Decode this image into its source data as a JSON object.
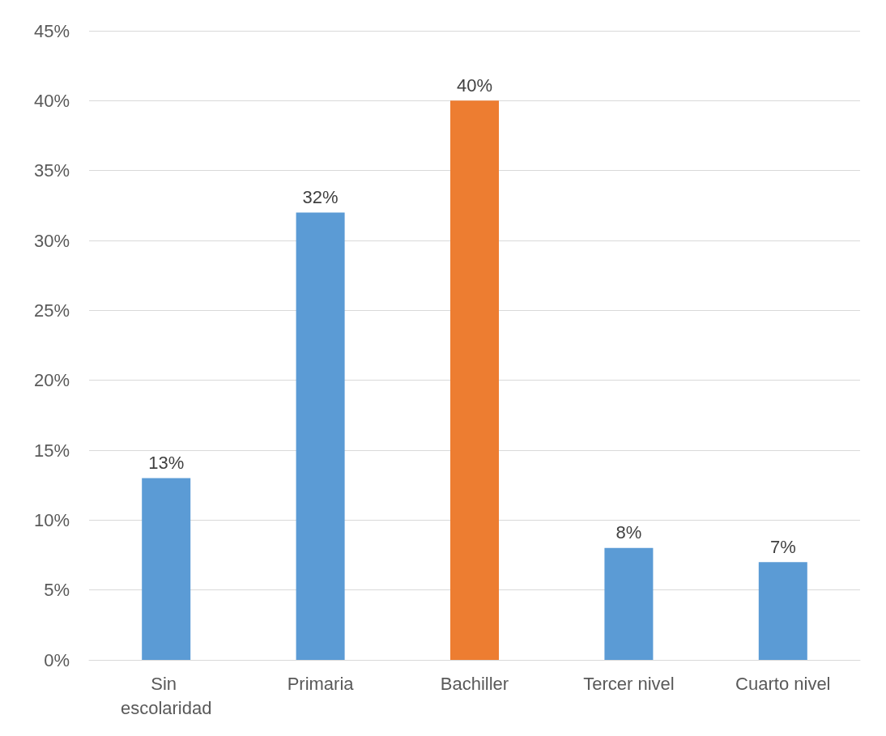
{
  "chart_data": {
    "type": "bar",
    "categories": [
      "Sin escolaridad",
      "Primaria",
      "Bachiller",
      "Tercer nivel",
      "Cuarto nivel"
    ],
    "values": [
      13,
      32,
      40,
      8,
      7
    ],
    "colors": [
      "#5b9bd5",
      "#5b9bd5",
      "#ed7d31",
      "#5b9bd5",
      "#5b9bd5"
    ],
    "value_labels": [
      "13%",
      "32%",
      "40%",
      "8%",
      "7%"
    ],
    "ylim": [
      0,
      45
    ],
    "yticks": [
      {
        "value": 0,
        "label": "0%"
      },
      {
        "value": 5,
        "label": "5%"
      },
      {
        "value": 10,
        "label": "10%"
      },
      {
        "value": 15,
        "label": "15%"
      },
      {
        "value": 20,
        "label": "20%"
      },
      {
        "value": 25,
        "label": "25%"
      },
      {
        "value": 30,
        "label": "30%"
      },
      {
        "value": 35,
        "label": "35%"
      },
      {
        "value": 40,
        "label": "40%"
      },
      {
        "value": 45,
        "label": "45%"
      }
    ],
    "grid": "y"
  }
}
